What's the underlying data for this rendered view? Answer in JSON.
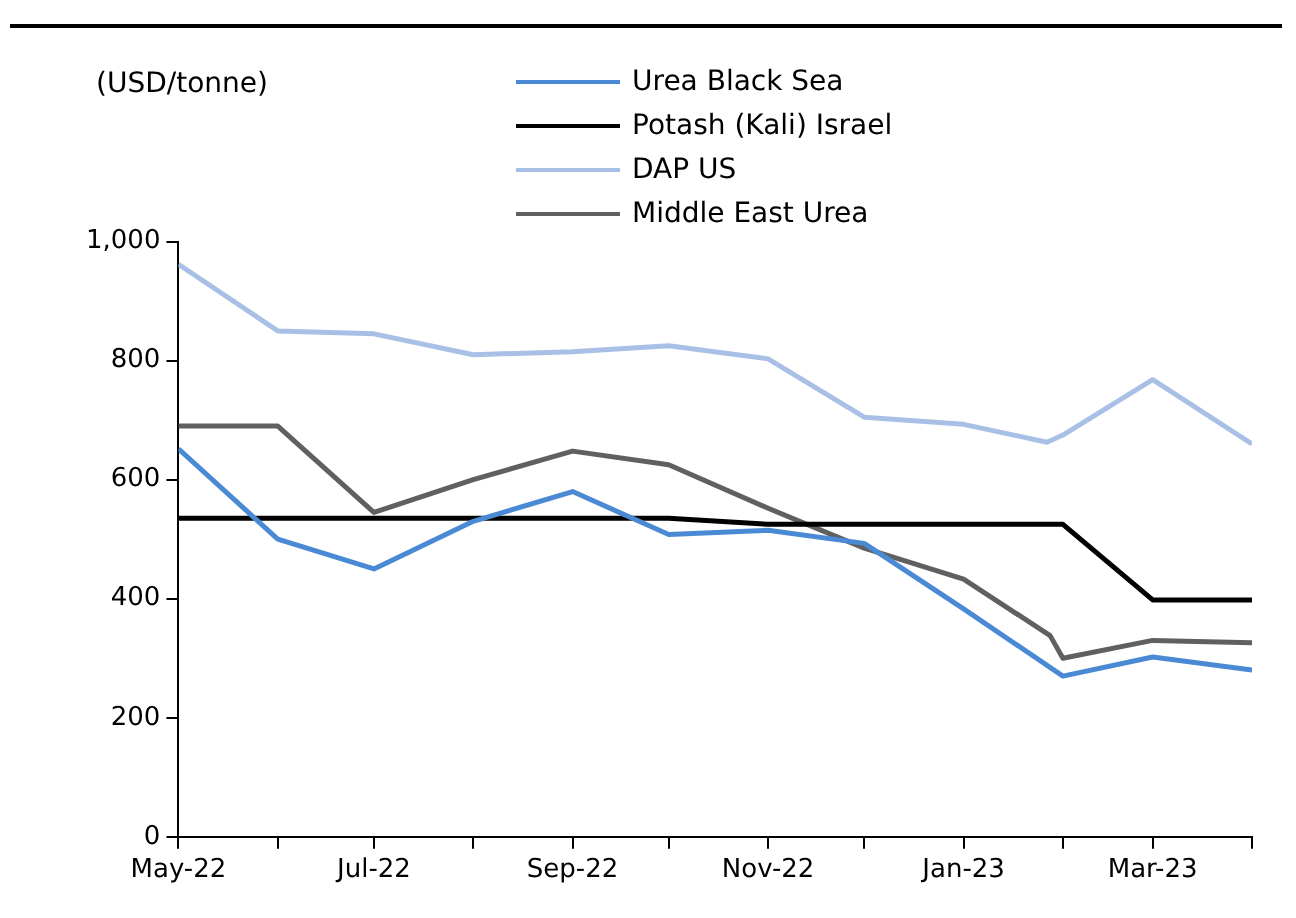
{
  "chart_data": {
    "type": "line",
    "ylabel": "(USD/tonne)",
    "xlim": [
      "2022-05",
      "2023-04"
    ],
    "xticks": [
      {
        "value": "2022-05",
        "label": "May-22"
      },
      {
        "value": "2022-06",
        "label": null
      },
      {
        "value": "2022-07",
        "label": "Jul-22"
      },
      {
        "value": "2022-08",
        "label": null
      },
      {
        "value": "2022-09",
        "label": "Sep-22"
      },
      {
        "value": "2022-10",
        "label": null
      },
      {
        "value": "2022-11",
        "label": "Nov-22"
      },
      {
        "value": "2022-12",
        "label": null
      },
      {
        "value": "2023-01",
        "label": "Jan-23"
      },
      {
        "value": "2023-02",
        "label": null
      },
      {
        "value": "2023-03",
        "label": "Mar-23"
      },
      {
        "value": "2023-04",
        "label": null
      }
    ],
    "ylim": [
      0,
      1000
    ],
    "yticks": [
      0,
      200,
      400,
      600,
      800,
      {
        "value": 1000,
        "label": "1,000"
      }
    ],
    "grid": false,
    "legend": "top",
    "marker": "none",
    "line_style": "solid",
    "series": [
      {
        "name": "Urea Black Sea",
        "color": "#4a8ad4",
        "x": [
          "2022-05",
          "2022-06",
          "2022-07",
          "2022-08",
          "2022-09",
          "2022-10",
          "2022-11",
          "2022-12",
          "2023-01",
          "2023-02",
          "2023-03",
          "2023-04"
        ],
        "values": [
          652,
          500,
          450,
          530,
          580,
          508,
          515,
          493,
          383,
          270,
          302,
          280
        ]
      },
      {
        "name": "Potash (Kali) Israel",
        "color": "#000000",
        "x": [
          "2022-05",
          "2022-06",
          "2022-07",
          "2022-08",
          "2022-09",
          "2022-10",
          "2022-11",
          "2022-12",
          "2023-01",
          "2023-02",
          "2023-03",
          "2023-04"
        ],
        "values": [
          535,
          535,
          535,
          535,
          535,
          535,
          525,
          525,
          525,
          525,
          398,
          398
        ]
      },
      {
        "name": "DAP US",
        "color": "#a9c0e6",
        "x": [
          "2022-05",
          "2022-06",
          "2022-07",
          "2022-08",
          "2022-09",
          "2022-10",
          "2022-11",
          "2022-12",
          "2023-01",
          "2023-01-27",
          "2023-02",
          "2023-03",
          "2023-04"
        ],
        "values": [
          962,
          850,
          845,
          810,
          815,
          825,
          803,
          705,
          693,
          663,
          675,
          768,
          660
        ]
      },
      {
        "name": "Middle East Urea",
        "color": "#606060",
        "x": [
          "2022-05",
          "2022-06",
          "2022-07",
          "2022-08",
          "2022-09",
          "2022-10",
          "2022-11",
          "2022-12",
          "2023-01",
          "2023-01-28",
          "2023-02",
          "2023-03",
          "2023-04"
        ],
        "values": [
          690,
          690,
          545,
          600,
          648,
          625,
          552,
          485,
          433,
          338,
          300,
          330,
          326
        ]
      }
    ]
  }
}
